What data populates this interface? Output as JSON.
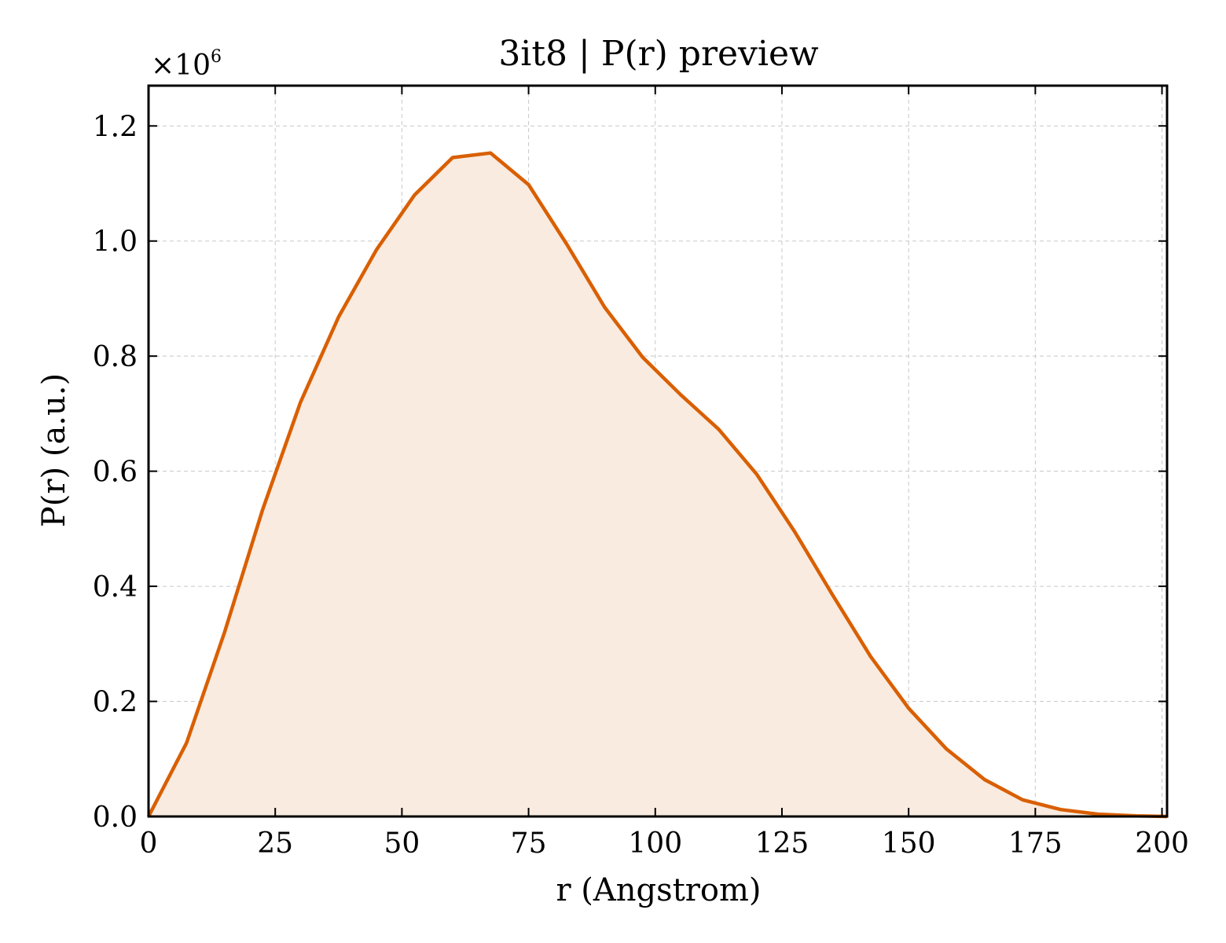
{
  "chart_data": {
    "type": "area",
    "title": "3it8 | P(r) preview",
    "xlabel": "r (Angstrom)",
    "ylabel": "P(r) (a.u.)",
    "y_multiplier_base": "×10",
    "y_multiplier_exp": "6",
    "xlim": [
      0,
      201
    ],
    "ylim": [
      0,
      1.27
    ],
    "xticks": [
      0,
      25,
      50,
      75,
      100,
      125,
      150,
      175,
      200
    ],
    "xtick_labels": [
      "0",
      "25",
      "50",
      "75",
      "100",
      "125",
      "150",
      "175",
      "200"
    ],
    "yticks": [
      0.0,
      0.2,
      0.4,
      0.6,
      0.8,
      1.0,
      1.2
    ],
    "ytick_labels": [
      "0.0",
      "0.2",
      "0.4",
      "0.6",
      "0.8",
      "1.0",
      "1.2"
    ],
    "grid": true,
    "line_color": "#d95f02",
    "fill_color": "#f9ebe0",
    "series": [
      {
        "x": [
          0,
          7.5,
          15,
          22.5,
          30,
          37.5,
          45,
          52.5,
          60,
          67.5,
          75,
          82.5,
          90,
          97.5,
          105,
          112.5,
          120,
          127.5,
          135,
          142.5,
          150,
          157.5,
          165,
          172.5,
          180,
          187.5,
          195,
          201
        ],
        "y": [
          0.0,
          0.128,
          0.32,
          0.533,
          0.72,
          0.868,
          0.985,
          1.08,
          1.145,
          1.153,
          1.098,
          0.995,
          0.885,
          0.798,
          0.733,
          0.673,
          0.595,
          0.495,
          0.385,
          0.278,
          0.188,
          0.117,
          0.064,
          0.029,
          0.012,
          0.004,
          0.001,
          0.0
        ]
      }
    ]
  }
}
